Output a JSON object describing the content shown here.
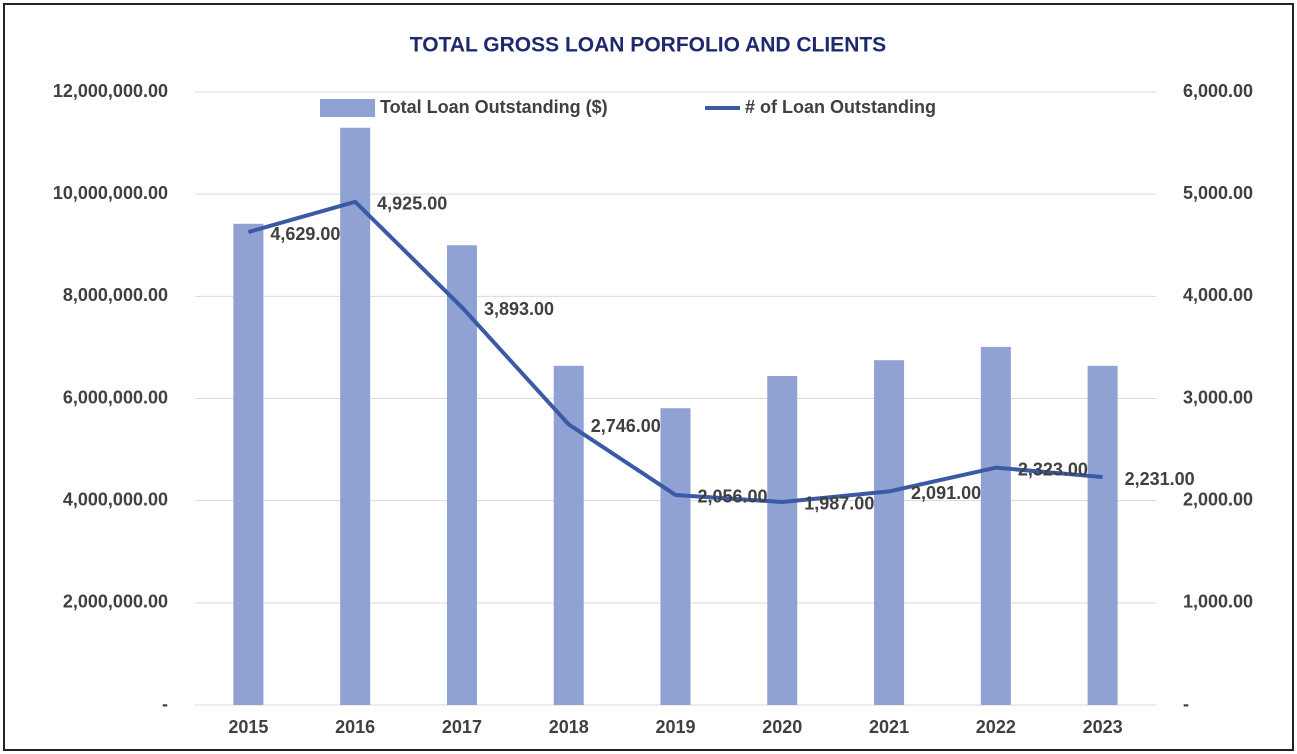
{
  "chart_data": {
    "type": "bar",
    "title": "TOTAL GROSS LOAN PORFOLIO AND CLIENTS",
    "categories": [
      "2015",
      "2016",
      "2017",
      "2018",
      "2019",
      "2020",
      "2021",
      "2022",
      "2023"
    ],
    "series": [
      {
        "name": "Total Loan Outstanding ($)",
        "type": "bar",
        "color": "#8fa2d3",
        "axis": "y",
        "values": [
          9420000,
          11300000,
          9000000,
          6640000,
          5810000,
          6440000,
          6750000,
          7010000,
          6640000
        ]
      },
      {
        "name": "# of Loan Outstanding",
        "type": "line",
        "color": "#3b5aa6",
        "axis": "y2",
        "values": [
          4629,
          4925,
          3893,
          2746,
          2056,
          1987,
          2091,
          2323,
          2231
        ],
        "value_labels": [
          "4,629.00",
          "4,925.00",
          "3,893.00",
          "2,746.00",
          "2,056.00",
          "1,987.00",
          "2,091.00",
          "2,323.00",
          "2,231.00"
        ]
      }
    ],
    "ylim": [
      0,
      12000000
    ],
    "yticks": [
      {
        "value": 0,
        "label": "-"
      },
      {
        "value": 2000000,
        "label": "2,000,000.00"
      },
      {
        "value": 4000000,
        "label": "4,000,000.00"
      },
      {
        "value": 6000000,
        "label": "6,000,000.00"
      },
      {
        "value": 8000000,
        "label": "8,000,000.00"
      },
      {
        "value": 10000000,
        "label": "10,000,000.00"
      },
      {
        "value": 12000000,
        "label": "12,000,000.00"
      }
    ],
    "y2lim": [
      0,
      6000
    ],
    "y2ticks": [
      {
        "value": 0,
        "label": "-"
      },
      {
        "value": 1000,
        "label": "1,000.00"
      },
      {
        "value": 2000,
        "label": "2,000.00"
      },
      {
        "value": 3000,
        "label": "3,000.00"
      },
      {
        "value": 4000,
        "label": "4,000.00"
      },
      {
        "value": 5000,
        "label": "5,000.00"
      },
      {
        "value": 6000,
        "label": "6,000.00"
      }
    ],
    "grid": true,
    "legend": "top"
  }
}
